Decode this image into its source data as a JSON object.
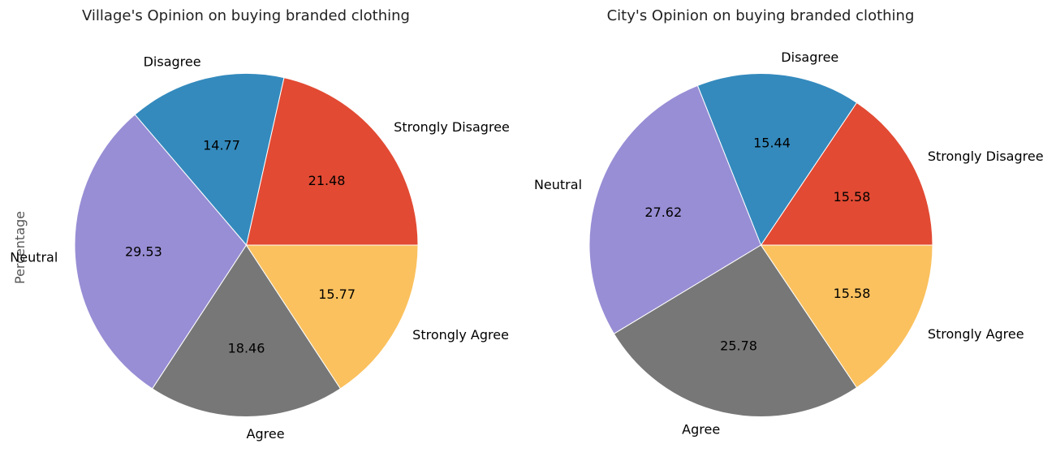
{
  "chart_data": [
    {
      "type": "pie",
      "title": "Village's Opinion on buying branded clothing",
      "ylabel": "Percentage",
      "categories": [
        "Strongly Disagree",
        "Disagree",
        "Neutral",
        "Agree",
        "Strongly Agree"
      ],
      "values": [
        21.48,
        14.77,
        29.53,
        18.46,
        15.77
      ],
      "value_labels": [
        "21.48",
        "14.77",
        "29.53",
        "18.46",
        "15.77"
      ],
      "colors": [
        "#E24A33",
        "#348ABD",
        "#988ED5",
        "#777777",
        "#FBC15E"
      ],
      "start_angle_deg": 0,
      "direction": "counterclockwise"
    },
    {
      "type": "pie",
      "title": "City's Opinion on buying branded clothing",
      "ylabel": "",
      "categories": [
        "Strongly Disagree",
        "Disagree",
        "Neutral",
        "Agree",
        "Strongly Agree"
      ],
      "values": [
        15.58,
        15.44,
        27.62,
        25.78,
        15.58
      ],
      "value_labels": [
        "15.58",
        "15.44",
        "27.62",
        "25.78",
        "15.58"
      ],
      "colors": [
        "#E24A33",
        "#348ABD",
        "#988ED5",
        "#777777",
        "#FBC15E"
      ],
      "start_angle_deg": 0,
      "direction": "counterclockwise"
    }
  ]
}
